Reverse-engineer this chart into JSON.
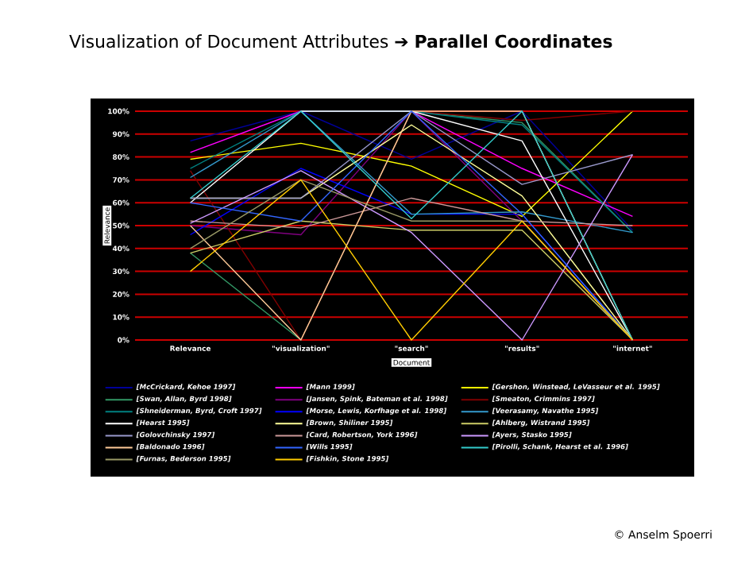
{
  "chart_data": {
    "type": "line",
    "title": "Visualization of Document Attributes ➔ **Parallel Coordinates**",
    "xlabel": "Document",
    "ylabel": "Relevance",
    "categories": [
      "Relevance",
      "\"visualization\"",
      "\"search\"",
      "\"results\"",
      "\"internet\""
    ],
    "ylim": [
      0,
      100
    ],
    "yticks": [
      {
        "value": 0,
        "label": "0%"
      },
      {
        "value": 10,
        "label": "10%"
      },
      {
        "value": 20,
        "label": "20%"
      },
      {
        "value": 30,
        "label": "30%"
      },
      {
        "value": 40,
        "label": "40%"
      },
      {
        "value": 50,
        "label": "50%"
      },
      {
        "value": 60,
        "label": "60%"
      },
      {
        "value": 70,
        "label": "70%"
      },
      {
        "value": 80,
        "label": "80%"
      },
      {
        "value": 90,
        "label": "90%"
      },
      {
        "value": 100,
        "label": "100%"
      }
    ],
    "grid": "y",
    "legend": "bottom",
    "marker": "none",
    "line_style": "solid",
    "series": [
      {
        "name": "[McCrickard, Kehoe 1997]",
        "color": "#000099",
        "values": [
          87,
          100,
          79,
          100,
          48
        ]
      },
      {
        "name": "[Mann 1999]",
        "color": "#ff00ff",
        "values": [
          82,
          100,
          100,
          75,
          54
        ]
      },
      {
        "name": "[Gershon, Winstead, LeVasseur et al. 1995]",
        "color": "#ffff00",
        "values": [
          79,
          86,
          76,
          54,
          100
        ]
      },
      {
        "name": "[Swan, Allan, Byrd 1998]",
        "color": "#339966",
        "values": [
          38,
          0,
          100,
          95,
          47
        ]
      },
      {
        "name": "[Jansen, Spink, Bateman et al. 1998]",
        "color": "#800080",
        "values": [
          50,
          46,
          100,
          52,
          0
        ]
      },
      {
        "name": "[Smeaton, Crimmins 1997]",
        "color": "#800000",
        "values": [
          74,
          0,
          100,
          96,
          100
        ]
      },
      {
        "name": "[Shneiderman, Byrd, Croft 1997]",
        "color": "#008080",
        "values": [
          75,
          100,
          100,
          94,
          47
        ]
      },
      {
        "name": "[Morse, Lewis, Korfhage et al. 1998]",
        "color": "#0000ff",
        "values": [
          46,
          75,
          55,
          55,
          0
        ]
      },
      {
        "name": "[Veerasamy, Navathe 1995]",
        "color": "#3399cc",
        "values": [
          71,
          100,
          55,
          56,
          47
        ]
      },
      {
        "name": "[Hearst 1995]",
        "color": "#ffffff",
        "values": [
          60,
          100,
          100,
          87,
          0
        ]
      },
      {
        "name": "[Brown, Shiliner 1995]",
        "color": "#ffff99",
        "values": [
          62,
          62,
          94,
          63,
          0
        ]
      },
      {
        "name": "[Ahlberg, Wistrand 1995]",
        "color": "#cccc66",
        "values": [
          38,
          52,
          48,
          48,
          0
        ]
      },
      {
        "name": "[Golovchinsky 1997]",
        "color": "#9999cc",
        "values": [
          62,
          62,
          100,
          68,
          81
        ]
      },
      {
        "name": "[Card, Robertson, York 1996]",
        "color": "#cc9999",
        "values": [
          52,
          49,
          62,
          52,
          50
        ]
      },
      {
        "name": "[Ayers, Stasko 1995]",
        "color": "#cc99ff",
        "values": [
          51,
          74,
          47,
          0,
          81
        ]
      },
      {
        "name": "[Baldonado 1996]",
        "color": "#ffcc99",
        "values": [
          50,
          0,
          100,
          100,
          0
        ]
      },
      {
        "name": "[Wills 1995]",
        "color": "#3366ff",
        "values": [
          60,
          52,
          100,
          55,
          0
        ]
      },
      {
        "name": "[Pirolli, Schank, Hearst et al. 1996]",
        "color": "#33cccc",
        "values": [
          62,
          100,
          53,
          100,
          0
        ]
      },
      {
        "name": "[Furnas, Bederson 1995]",
        "color": "#999966",
        "values": [
          40,
          70,
          52,
          52,
          0
        ]
      },
      {
        "name": "[Fishkin, Stone 1995]",
        "color": "#ffcc00",
        "values": [
          30,
          70,
          0,
          52,
          0
        ]
      }
    ],
    "annotations": [
      "© Anselm Spoerri"
    ]
  }
}
